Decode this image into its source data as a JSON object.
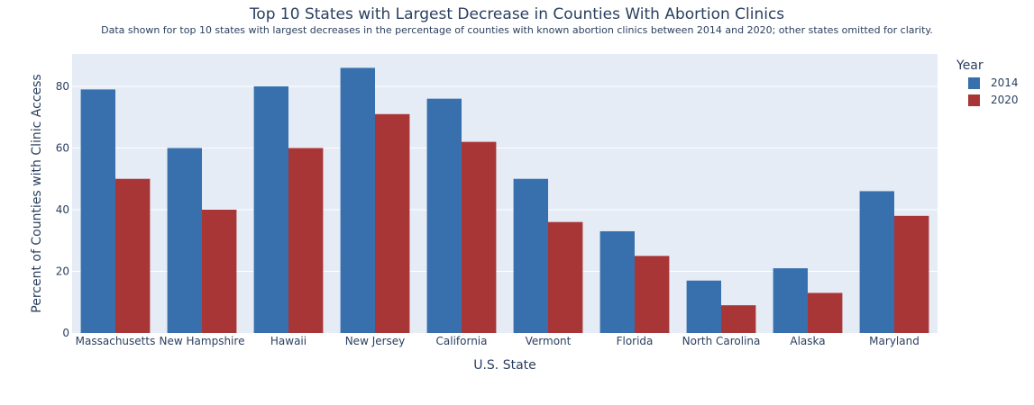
{
  "chart_data": {
    "type": "bar",
    "title": "Top 10 States with Largest Decrease in Counties With Abortion Clinics",
    "subtitle": "Data shown for top 10 states with largest decreases in the percentage of counties with known abortion clinics between 2014 and 2020; other states omitted for clarity.",
    "xlabel": "U.S. State",
    "ylabel": "Percent of Counties with Clinic Access",
    "categories": [
      "Massachusetts",
      "New Hampshire",
      "Hawaii",
      "New Jersey",
      "California",
      "Vermont",
      "Florida",
      "North Carolina",
      "Alaska",
      "Maryland"
    ],
    "series": [
      {
        "name": "2014",
        "color": "#3770ad",
        "values": [
          79,
          60,
          80,
          86,
          76,
          50,
          33,
          17,
          21,
          46
        ]
      },
      {
        "name": "2020",
        "color": "#a93637",
        "values": [
          50,
          40,
          60,
          71,
          62,
          36,
          25,
          9,
          13,
          38
        ]
      }
    ],
    "ylim": [
      0,
      90.5
    ],
    "yticks": [
      0,
      20,
      40,
      60,
      80
    ],
    "grid": true,
    "legend": {
      "title": "Year",
      "placement": "top-right"
    },
    "plot_background": "#e5ecf6"
  }
}
